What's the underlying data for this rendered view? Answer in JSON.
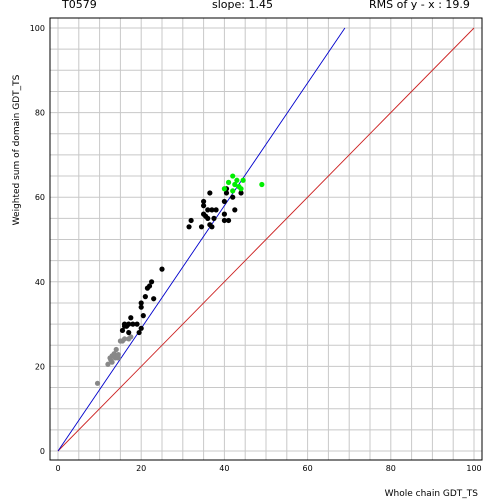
{
  "header": {
    "target": "T0579",
    "slope_text": "slope: 1.45",
    "rms_text": "RMS of  y - x : 19.9"
  },
  "chart_data": {
    "type": "scatter",
    "title": "",
    "xlabel": "Whole chain GDT_TS",
    "ylabel": "Weighted sum of domain GDT_TS",
    "xlim": [
      0,
      100
    ],
    "ylim": [
      0,
      100
    ],
    "xticks": [
      0,
      20,
      40,
      60,
      80,
      100
    ],
    "yticks": [
      0,
      20,
      40,
      60,
      80,
      100
    ],
    "grid": true,
    "fit_line": {
      "slope": 1.45,
      "color": "#0000cc"
    },
    "identity_line": {
      "slope": 1,
      "color": "#cc2222"
    },
    "series": [
      {
        "color": "#888888",
        "points": [
          [
            9.5,
            16
          ],
          [
            12,
            20.5
          ],
          [
            12.5,
            22
          ],
          [
            12.7,
            21.5
          ],
          [
            13,
            22.5
          ],
          [
            13,
            21
          ],
          [
            13.5,
            23
          ],
          [
            13.8,
            22
          ],
          [
            14,
            24
          ],
          [
            14.5,
            22
          ],
          [
            14.5,
            22.8
          ],
          [
            15,
            26
          ],
          [
            15.5,
            26
          ],
          [
            16,
            26.5
          ],
          [
            17,
            26.5
          ],
          [
            17.5,
            27
          ]
        ]
      },
      {
        "color": "#000000",
        "points": [
          [
            15.5,
            28.5
          ],
          [
            16,
            29.5
          ],
          [
            16,
            30
          ],
          [
            16.5,
            29.5
          ],
          [
            17,
            28
          ],
          [
            17,
            30
          ],
          [
            17.5,
            31.5
          ],
          [
            18,
            30
          ],
          [
            19,
            30
          ],
          [
            19.5,
            28
          ],
          [
            20,
            29
          ],
          [
            20,
            34
          ],
          [
            20,
            35
          ],
          [
            20.5,
            32
          ],
          [
            21,
            36.5
          ],
          [
            21.5,
            38.5
          ],
          [
            22,
            39
          ],
          [
            22.5,
            40
          ],
          [
            23,
            36
          ],
          [
            25,
            43
          ],
          [
            31.5,
            53
          ],
          [
            32,
            54.5
          ],
          [
            34.5,
            53
          ],
          [
            35,
            56
          ],
          [
            35,
            58
          ],
          [
            35,
            59
          ],
          [
            35.5,
            55.5
          ],
          [
            36,
            55
          ],
          [
            36,
            57
          ],
          [
            36.5,
            61
          ],
          [
            36.5,
            53.5
          ],
          [
            37,
            53
          ],
          [
            37,
            57
          ],
          [
            37.5,
            55
          ],
          [
            38,
            57
          ],
          [
            40,
            54.5
          ],
          [
            40,
            56
          ],
          [
            40,
            59
          ],
          [
            40.5,
            61
          ],
          [
            40.5,
            62
          ],
          [
            41,
            54.5
          ],
          [
            42,
            60
          ],
          [
            42.5,
            57
          ],
          [
            44,
            61
          ]
        ]
      },
      {
        "color": "#00ee00",
        "points": [
          [
            40,
            62
          ],
          [
            41,
            63.5
          ],
          [
            42,
            65
          ],
          [
            42,
            61.5
          ],
          [
            42.5,
            63
          ],
          [
            43,
            64
          ],
          [
            43.5,
            62.5
          ],
          [
            44,
            62
          ],
          [
            44.5,
            64
          ],
          [
            49,
            63
          ]
        ]
      }
    ]
  }
}
